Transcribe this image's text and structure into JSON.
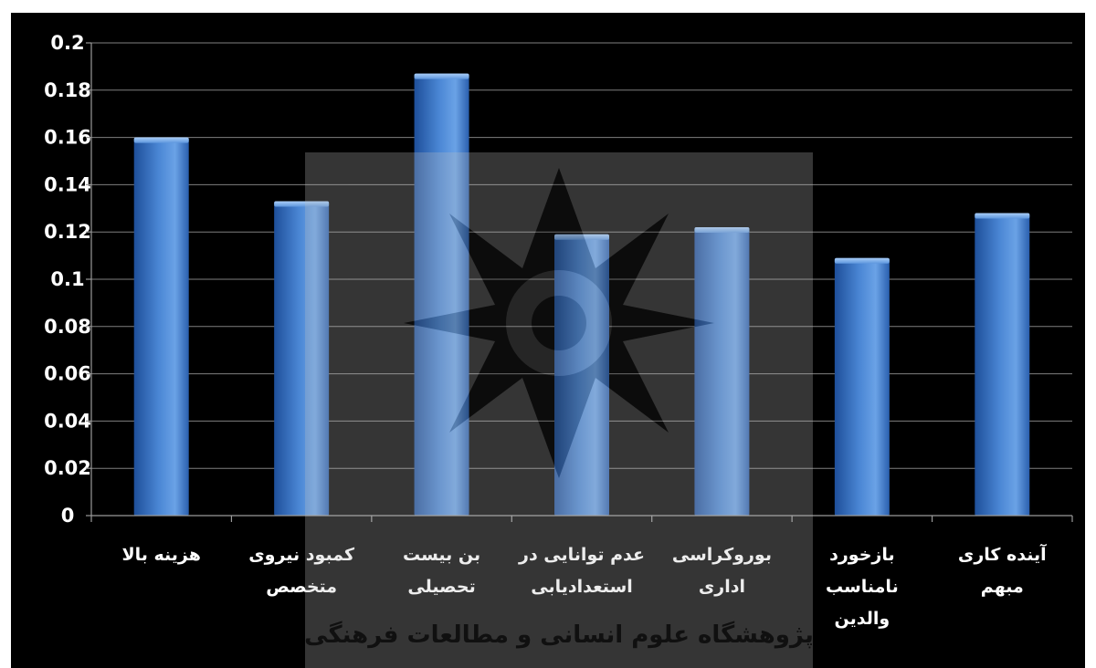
{
  "chart_data": {
    "type": "bar",
    "categories": [
      "هزینه بالا",
      "کمبود نیروی متخصص",
      "بن بیست تحصیلی",
      "عدم توانایی در استعدادیابی",
      "بوروکراسی اداری",
      "بازخورد نامناسب والدین",
      "آینده کاری مبهم"
    ],
    "category_lines": [
      [
        "هزینه بالا"
      ],
      [
        "کمبود نیروی",
        "متخصص"
      ],
      [
        "بن بیست",
        "تحصیلی"
      ],
      [
        "عدم توانایی در",
        "استعدادیابی"
      ],
      [
        "بوروکراسی",
        "اداری"
      ],
      [
        "بازخورد",
        "نامناسب",
        "والدین"
      ],
      [
        "آینده کاری",
        "مبهم"
      ]
    ],
    "values": [
      0.16,
      0.133,
      0.187,
      0.119,
      0.122,
      0.109,
      0.128
    ],
    "yticks": [
      "0",
      "0.02",
      "0.04",
      "0.06",
      "0.08",
      "0.1",
      "0.12",
      "0.14",
      "0.16",
      "0.18",
      "0.2"
    ],
    "ylim": [
      0,
      0.2
    ],
    "title": "",
    "xlabel": "",
    "ylabel": "",
    "grid": true,
    "legend": "none",
    "colors": {
      "background": "#000000",
      "bar": "#4a86d4",
      "bar_light": "#7db0ee",
      "bar_dark": "#1e4f9a",
      "grid": "#7f7f7f",
      "text": "#ffffff"
    }
  },
  "watermark": {
    "text": "پژوهشگاه علوم انسانی و مطالعات فرهنگی",
    "icon": "star-rosette-logo"
  }
}
